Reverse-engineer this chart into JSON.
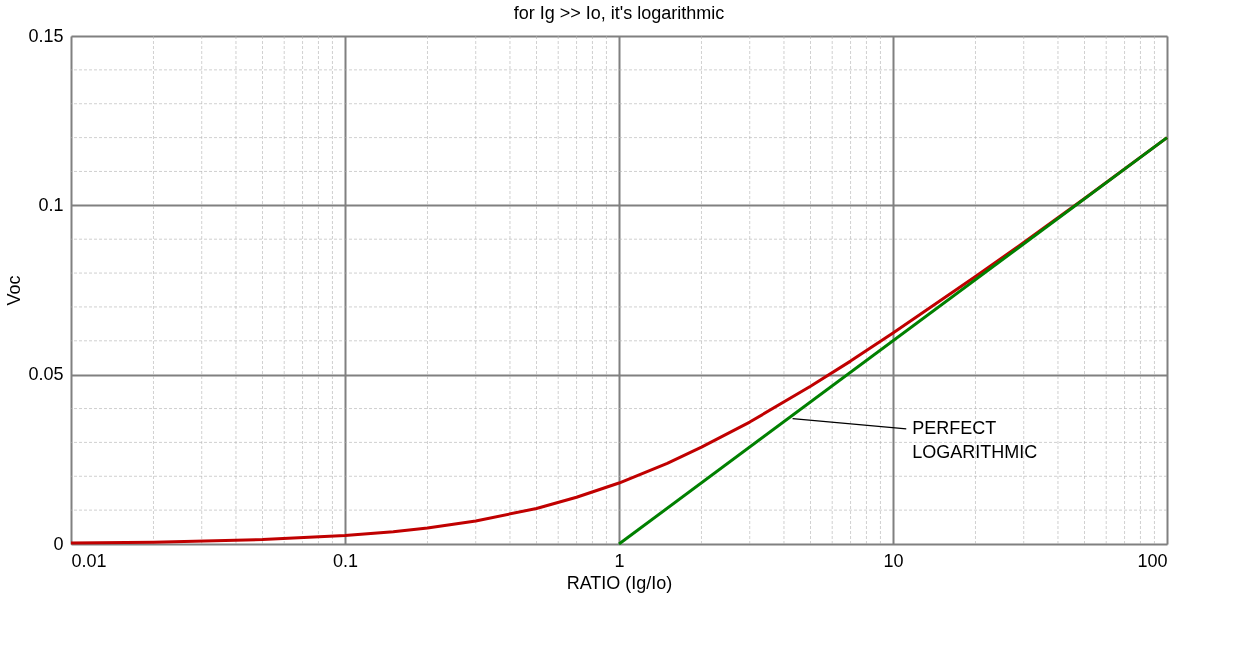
{
  "chart_data": {
    "type": "line",
    "title": "for Ig >> Io, it's logarithmic",
    "xlabel": "RATIO (Ig/Io)",
    "ylabel": "Voc",
    "log": "x",
    "grid": true,
    "legend": false,
    "marker": "none",
    "line_style": "solid",
    "xlim": [
      0.01,
      100
    ],
    "xticks": [
      0.01,
      0.1,
      1,
      10,
      100
    ],
    "ylim": [
      0,
      0.15
    ],
    "yticks": [
      0,
      0.05,
      0.1,
      0.15
    ],
    "series": [
      {
        "color": "#c00000",
        "x": [
          0.01,
          0.02,
          0.05,
          0.1,
          0.15,
          0.2,
          0.3,
          0.5,
          0.7,
          1,
          1.5,
          2,
          3,
          5,
          7,
          10,
          20,
          30,
          50,
          100
        ],
        "values": [
          0.0003,
          0.0005,
          0.0013,
          0.0025,
          0.0036,
          0.0047,
          0.0068,
          0.0105,
          0.0138,
          0.018,
          0.0238,
          0.0286,
          0.036,
          0.0466,
          0.054,
          0.0623,
          0.079,
          0.089,
          0.102,
          0.12
        ]
      },
      {
        "color": "#008000",
        "x": [
          1,
          100
        ],
        "values": [
          0,
          0.12
        ]
      }
    ],
    "annotations": [
      {
        "text": "PERFECT LOGARITHMIC",
        "x": 4.3,
        "y": 0.037
      }
    ]
  }
}
